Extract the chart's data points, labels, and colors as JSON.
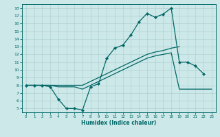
{
  "xlabel": "Humidex (Indice chaleur)",
  "bg_color": "#cce8e8",
  "grid_color": "#aacccc",
  "line_color": "#006666",
  "xlim": [
    -0.5,
    23.5
  ],
  "ylim": [
    4.5,
    18.5
  ],
  "xticks": [
    0,
    1,
    2,
    3,
    4,
    5,
    6,
    7,
    8,
    9,
    10,
    11,
    12,
    13,
    14,
    15,
    16,
    17,
    18,
    19,
    20,
    21,
    22,
    23
  ],
  "yticks": [
    5,
    6,
    7,
    8,
    9,
    10,
    11,
    12,
    13,
    14,
    15,
    16,
    17,
    18
  ],
  "curve1_x": [
    0,
    1,
    2,
    3,
    4,
    5,
    6,
    7,
    8,
    9,
    10,
    11,
    12,
    13,
    14,
    15,
    16,
    17,
    18,
    19,
    20,
    21,
    22
  ],
  "curve1_y": [
    8.0,
    8.0,
    8.0,
    7.8,
    6.2,
    5.0,
    5.0,
    4.8,
    7.8,
    8.2,
    11.5,
    12.8,
    13.2,
    14.5,
    16.2,
    17.3,
    16.8,
    17.2,
    18.0,
    11.0,
    11.0,
    10.5,
    9.5
  ],
  "curve2_x": [
    0,
    1,
    2,
    3,
    4,
    5,
    6,
    7,
    8,
    9,
    10,
    11,
    12,
    13,
    14,
    15,
    16,
    17,
    18,
    19
  ],
  "curve2_y": [
    8.0,
    8.0,
    8.0,
    8.0,
    8.0,
    8.0,
    8.0,
    8.0,
    8.5,
    9.0,
    9.5,
    10.0,
    10.5,
    11.0,
    11.5,
    12.0,
    12.3,
    12.5,
    12.8,
    13.0
  ],
  "curve3_x": [
    0,
    1,
    2,
    3,
    4,
    5,
    6,
    7,
    8,
    9,
    10,
    11,
    12,
    13,
    14,
    15,
    16,
    17,
    18,
    19,
    20,
    21,
    22,
    23
  ],
  "curve3_y": [
    8.0,
    8.0,
    8.0,
    8.0,
    7.8,
    7.8,
    7.8,
    7.5,
    8.0,
    8.5,
    9.0,
    9.5,
    10.0,
    10.5,
    11.0,
    11.5,
    11.8,
    12.0,
    12.2,
    7.5,
    7.5,
    7.5,
    7.5,
    7.5
  ]
}
